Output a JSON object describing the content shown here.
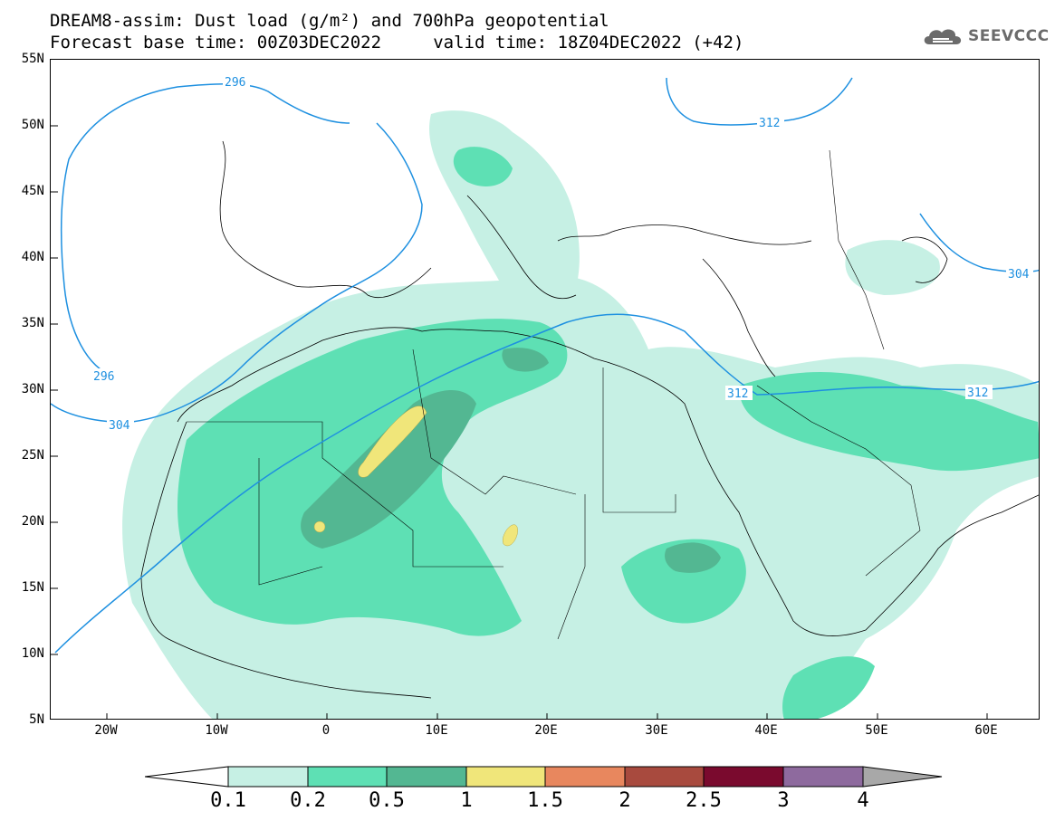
{
  "header": {
    "title_line1": "DREAM8-assim: Dust load (g/m²) and 700hPa geopotential",
    "title_line2": "Forecast base time: 00Z03DEC2022     valid time: 18Z04DEC2022 (+42)",
    "brand": "SEEVCCC",
    "brand_icon": "cloud-logo-icon"
  },
  "map": {
    "lat_labels": [
      "55N",
      "50N",
      "45N",
      "40N",
      "35N",
      "30N",
      "25N",
      "20N",
      "15N",
      "10N",
      "5N"
    ],
    "lon_labels": [
      "20W",
      "10W",
      "0",
      "10E",
      "20E",
      "30E",
      "40E",
      "50E",
      "60E"
    ],
    "contour_labels": [
      "296",
      "296",
      "304",
      "312",
      "312",
      "312",
      "304"
    ]
  },
  "colorbar": {
    "labels": [
      "0.1",
      "0.2",
      "0.5",
      "1",
      "1.5",
      "2",
      "2.5",
      "3",
      "4"
    ],
    "colors": [
      "#ffffff",
      "#c6f0e4",
      "#5ee0b4",
      "#53b792",
      "#f0e67a",
      "#e8875e",
      "#a84a3e",
      "#7a0a2e",
      "#8e6a9e",
      "#a8a8a8"
    ]
  },
  "legend_colors": {
    "contour_line": "#1e90e0",
    "coastline": "#000000"
  }
}
